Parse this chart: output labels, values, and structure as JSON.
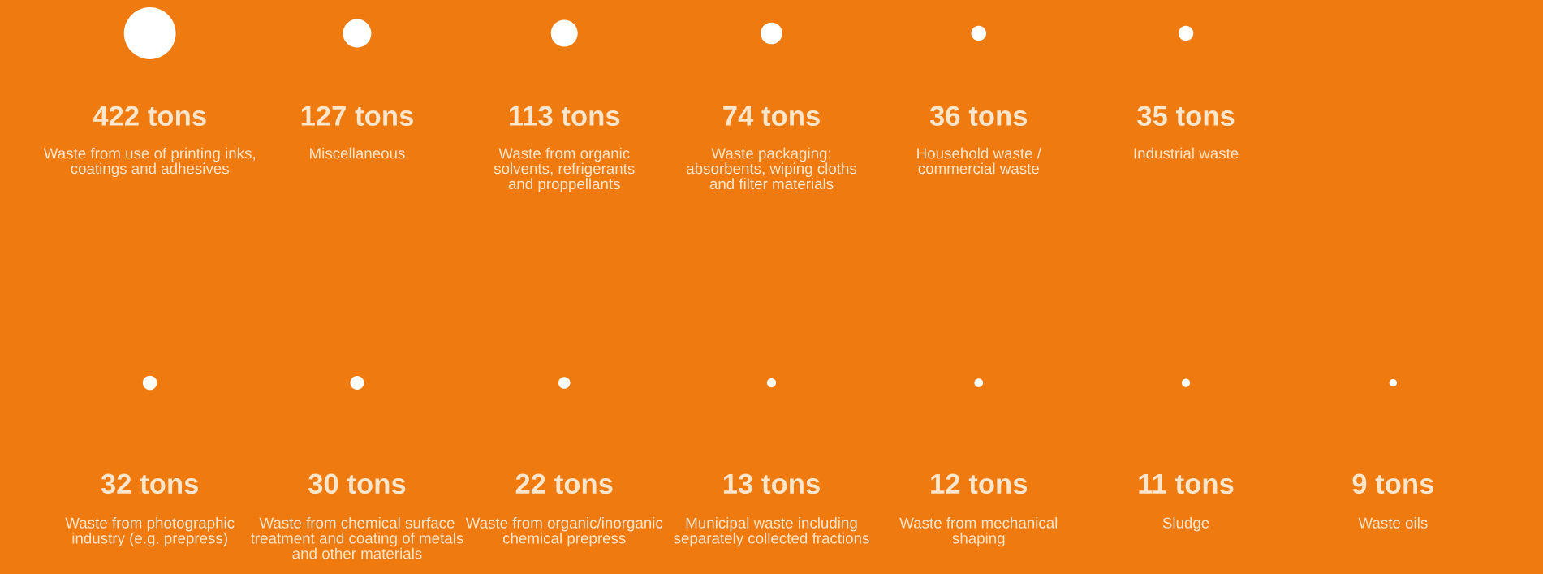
{
  "chart_data": {
    "type": "other",
    "categories": [
      "Waste from use of printing inks,\ncoatings and adhesives",
      "Miscellaneous",
      "Waste from organic\nsolvents, refrigerants\nand proppellants",
      "Waste packaging:\nabsorbents, wiping cloths\nand filter materials",
      "Household waste /\ncommercial waste",
      "Industrial waste",
      "Waste from photographic\nindustry (e.g. prepress)",
      "Waste from chemical surface\ntreatment and coating of metals\nand other materials",
      "Waste from organic/inorganic\nchemical prepress",
      "Municipal waste including\nseparately collected fractions",
      "Waste from mechanical\nshaping",
      "Sludge",
      "Waste oils"
    ],
    "values": [
      422,
      127,
      113,
      74,
      36,
      35,
      32,
      30,
      22,
      13,
      12,
      11,
      9
    ],
    "value_labels": [
      "422 tons",
      "127 tons",
      "113 tons",
      "74 tons",
      "36 tons",
      "35 tons",
      "32 tons",
      "30 tons",
      "22 tons",
      "13 tons",
      "12 tons",
      "11 tons",
      "9 tons"
    ],
    "color": "#ffffff"
  }
}
